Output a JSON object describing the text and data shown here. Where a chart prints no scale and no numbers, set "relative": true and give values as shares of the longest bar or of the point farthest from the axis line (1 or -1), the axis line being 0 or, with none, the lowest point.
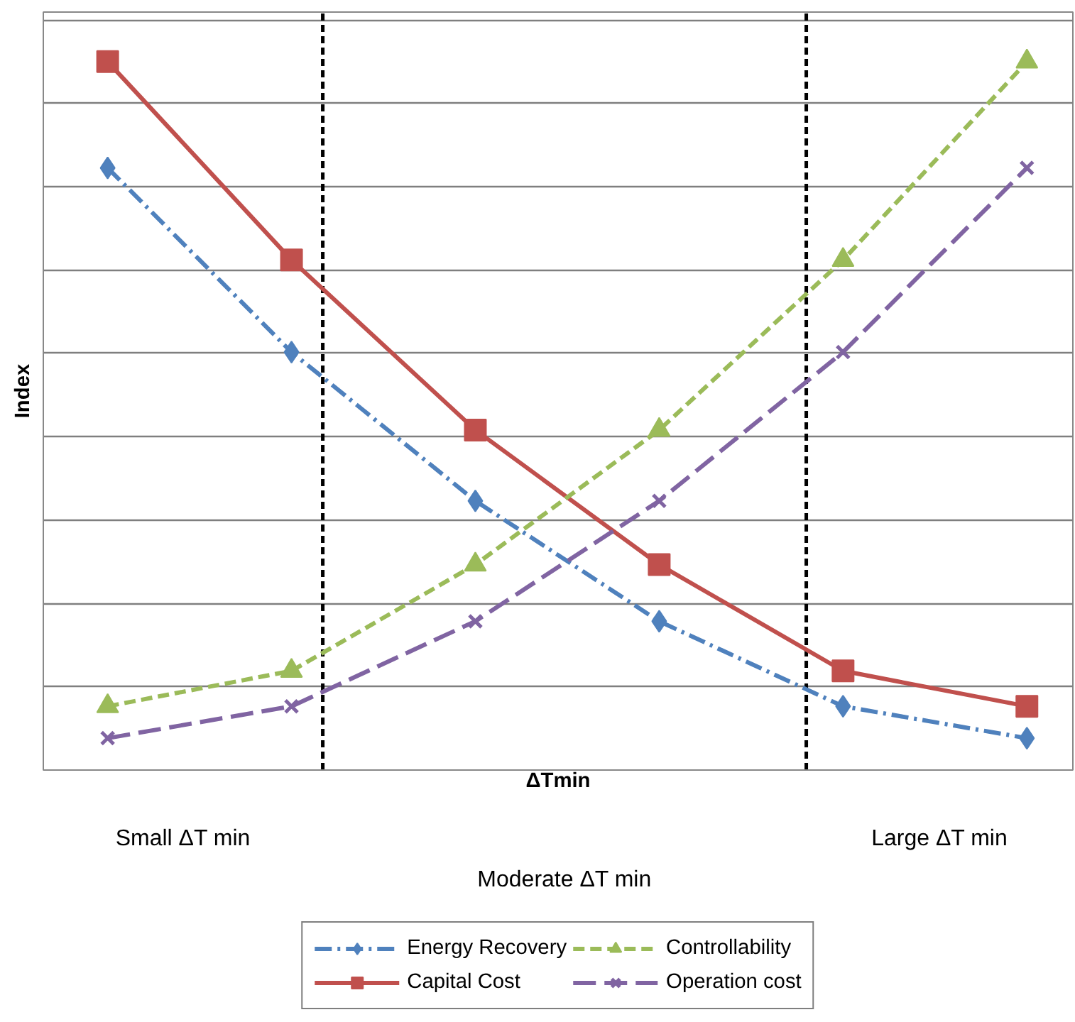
{
  "chart_data": {
    "type": "line",
    "relative": true,
    "xlabel": "ΔTmin",
    "ylabel": "Index",
    "categories": [
      null,
      null,
      null,
      null,
      null,
      null
    ],
    "series": [
      {
        "name": "Energy Recovery",
        "color": "#4f81bd",
        "marker": "diamond",
        "line_style": "dashdot",
        "values": [
          0.85,
          0.59,
          0.38,
          0.21,
          0.09,
          0.045
        ]
      },
      {
        "name": "Capital Cost",
        "color": "#c0504d",
        "marker": "square",
        "line_style": "solid",
        "values": [
          1,
          0.72,
          0.48,
          0.29,
          0.14,
          0.09
        ]
      },
      {
        "name": "Controllability",
        "color": "#9bbb59",
        "marker": "triangle",
        "line_style": "dashed",
        "values": [
          0.09,
          0.14,
          0.29,
          0.48,
          0.72,
          1
        ]
      },
      {
        "name": "Operation cost",
        "color": "#8064a2",
        "marker": "cross",
        "line_style": "longdash",
        "values": [
          0.045,
          0.09,
          0.21,
          0.38,
          0.59,
          0.85
        ]
      }
    ],
    "annotations": [
      "Small ΔT min",
      "Moderate ΔT min",
      "Large ΔT min"
    ],
    "grid": "y",
    "legend": "bottom"
  }
}
